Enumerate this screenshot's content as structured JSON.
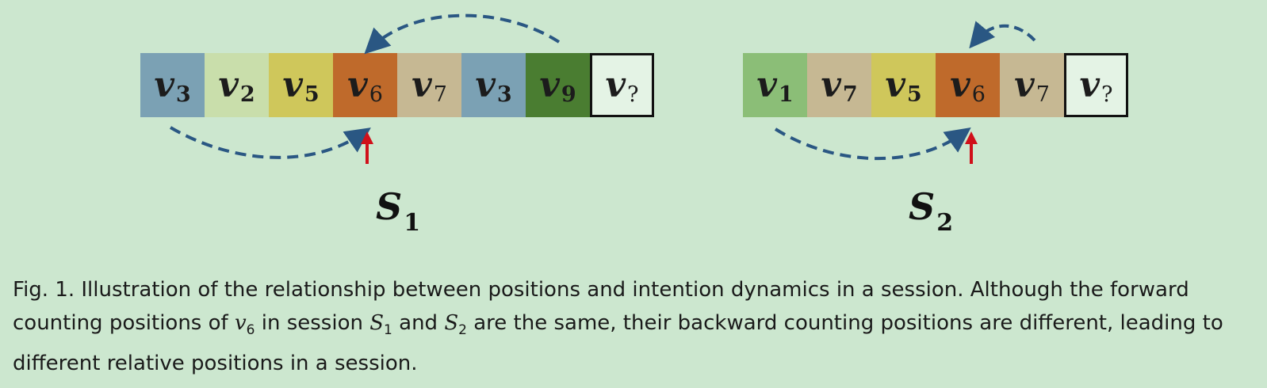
{
  "figure": {
    "sequence_1": [
      {
        "symbol": "v",
        "index": "3",
        "color": "#7ba1b4"
      },
      {
        "symbol": "v",
        "index": "2",
        "color": "#c9deab"
      },
      {
        "symbol": "v",
        "index": "5",
        "color": "#cfc75b"
      },
      {
        "symbol": "v",
        "index": "6",
        "color": "#bf6a2b"
      },
      {
        "symbol": "v",
        "index": "7",
        "color": "#c6b893"
      },
      {
        "symbol": "v",
        "index": "3",
        "color": "#7ba1b4"
      },
      {
        "symbol": "v",
        "index": "9",
        "color": "#4a7d31"
      },
      {
        "symbol": "v",
        "index": "?",
        "color": "#e4f3e5"
      }
    ],
    "sequence_2": [
      {
        "symbol": "v",
        "index": "1",
        "color": "#8bbe77"
      },
      {
        "symbol": "v",
        "index": "7",
        "color": "#c6b893"
      },
      {
        "symbol": "v",
        "index": "5",
        "color": "#cfc75b"
      },
      {
        "symbol": "v",
        "index": "6",
        "color": "#bf6a2b"
      },
      {
        "symbol": "v",
        "index": "7",
        "color": "#c6b893"
      },
      {
        "symbol": "v",
        "index": "?",
        "color": "#e4f3e5"
      }
    ],
    "label_1": {
      "symbol": "S",
      "index": "1"
    },
    "label_2": {
      "symbol": "S",
      "index": "2"
    },
    "arrow_color": "#2a5783",
    "marker_color": "#d0101a"
  },
  "caption": {
    "prefix": "Fig. 1.  Illustration of the relationship between positions and intention dynamics in a session. Although the forward counting positions of ",
    "var_symbol": "v",
    "var_index": "6",
    "mid_1": " in session ",
    "set_1_symbol": "S",
    "set_1_index": "1",
    "mid_2": " and ",
    "set_2_symbol": "S",
    "set_2_index": "2",
    "suffix": " are the same, their backward counting positions are different, leading to different relative positions in a session."
  }
}
